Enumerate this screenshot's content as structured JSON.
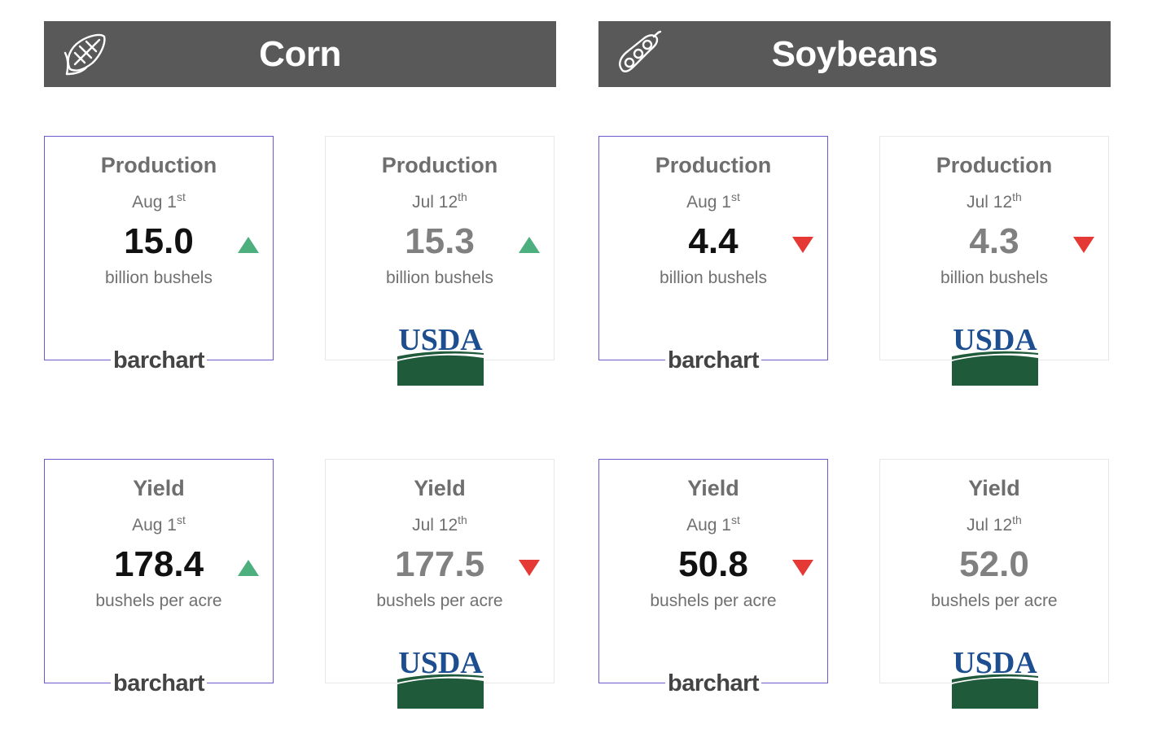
{
  "sections": {
    "corn": {
      "title": "Corn",
      "icon": "corn-icon"
    },
    "soybeans": {
      "title": "Soybeans",
      "icon": "soybean-pod-icon"
    }
  },
  "cards": {
    "corn_prod_aug": {
      "metric": "Production",
      "month": "Aug 1",
      "suffix": "st",
      "value": "15.0",
      "unit": "billion bushels",
      "trend": "up",
      "source": "barchart"
    },
    "corn_prod_jul": {
      "metric": "Production",
      "month": "Jul 12",
      "suffix": "th",
      "value": "15.3",
      "unit": "billion bushels",
      "trend": "up",
      "source": "USDA"
    },
    "soy_prod_aug": {
      "metric": "Production",
      "month": "Aug 1",
      "suffix": "st",
      "value": "4.4",
      "unit": "billion bushels",
      "trend": "down",
      "source": "barchart"
    },
    "soy_prod_jul": {
      "metric": "Production",
      "month": "Jul 12",
      "suffix": "th",
      "value": "4.3",
      "unit": "billion bushels",
      "trend": "down",
      "source": "USDA"
    },
    "corn_yield_aug": {
      "metric": "Yield",
      "month": "Aug 1",
      "suffix": "st",
      "value": "178.4",
      "unit": "bushels per acre",
      "trend": "up",
      "source": "barchart"
    },
    "corn_yield_jul": {
      "metric": "Yield",
      "month": "Jul 12",
      "suffix": "th",
      "value": "177.5",
      "unit": "bushels per acre",
      "trend": "down",
      "source": "USDA"
    },
    "soy_yield_aug": {
      "metric": "Yield",
      "month": "Aug 1",
      "suffix": "st",
      "value": "50.8",
      "unit": "bushels per acre",
      "trend": "down",
      "source": "barchart"
    },
    "soy_yield_jul": {
      "metric": "Yield",
      "month": "Jul 12",
      "suffix": "th",
      "value": "52.0",
      "unit": "bushels per acre",
      "trend": "none",
      "source": "USDA"
    }
  },
  "colors": {
    "header_bg": "#595959",
    "up": "#4caf7d",
    "down": "#e53935",
    "barchart_border": "#6a5acd",
    "usda_green": "#1f5a3a",
    "usda_blue": "#1d4e8f"
  }
}
